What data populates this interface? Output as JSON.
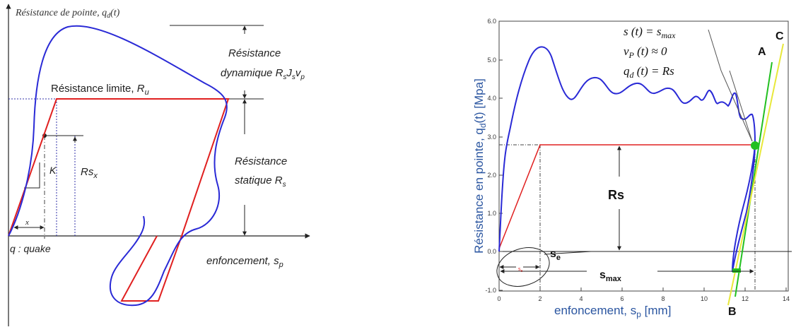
{
  "left": {
    "ylabel_prefix": "Résistance de pointe, ",
    "ylabel_q": "q",
    "ylabel_sub": "d",
    "ylabel_suffix": "(t)",
    "res_limite": "Résistance limite, ",
    "res_limite_sym": "R",
    "res_limite_sub": "u",
    "res_dyn_1": "Résistance",
    "res_dyn_2": "dynamique ",
    "res_dyn_sym": "R",
    "res_dyn_s1": "s",
    "res_dyn_J": "J",
    "res_dyn_s2": "s",
    "res_dyn_v": "v",
    "res_dyn_p": "p",
    "res_stat_1": "Résistance",
    "res_stat_2": "statique ",
    "res_stat_sym": "R",
    "res_stat_sub": "s",
    "K": "K",
    "rsx": "Rs",
    "rsx_sub": "x",
    "x": "x",
    "quake": "q : quake",
    "enfonc": "enfoncement, ",
    "enfonc_s": "s",
    "enfonc_p": "p"
  },
  "right": {
    "eq1": "s (t) = s",
    "eq1_sub": "max",
    "eq2": "v",
    "eq2_sub": "P",
    "eq2_rest": " (t) ≈ 0",
    "eq3": "q",
    "eq3_sub": "d",
    "eq3_rest": " (t) = Rs",
    "ylabel": "Résistance en pointe, q",
    "ylabel_sub": "d",
    "ylabel_rest": "(t) [Mpa]",
    "xlabel": "enfoncement, s",
    "xlabel_sub": "p",
    "xlabel_rest": " [mm]",
    "yticks": [
      "6.0",
      "5.0",
      "4.0",
      "3.0",
      "2.0",
      "1.0",
      "0.0",
      "-1.0"
    ],
    "xticks": [
      "0",
      "2",
      "4",
      "6",
      "8",
      "10",
      "12",
      "14"
    ],
    "Rs": "Rs",
    "se": "s",
    "se_sub": "e",
    "se_small": "s",
    "se_small_sub": "e",
    "smax": "s",
    "smax_sub": "max",
    "A": "A",
    "B": "B",
    "C": "C"
  },
  "colors": {
    "blue": "#2a2ad6",
    "red": "#e02020",
    "green": "#22c020",
    "yellow": "#e8e83a",
    "axis_label": "#2a55a0"
  }
}
